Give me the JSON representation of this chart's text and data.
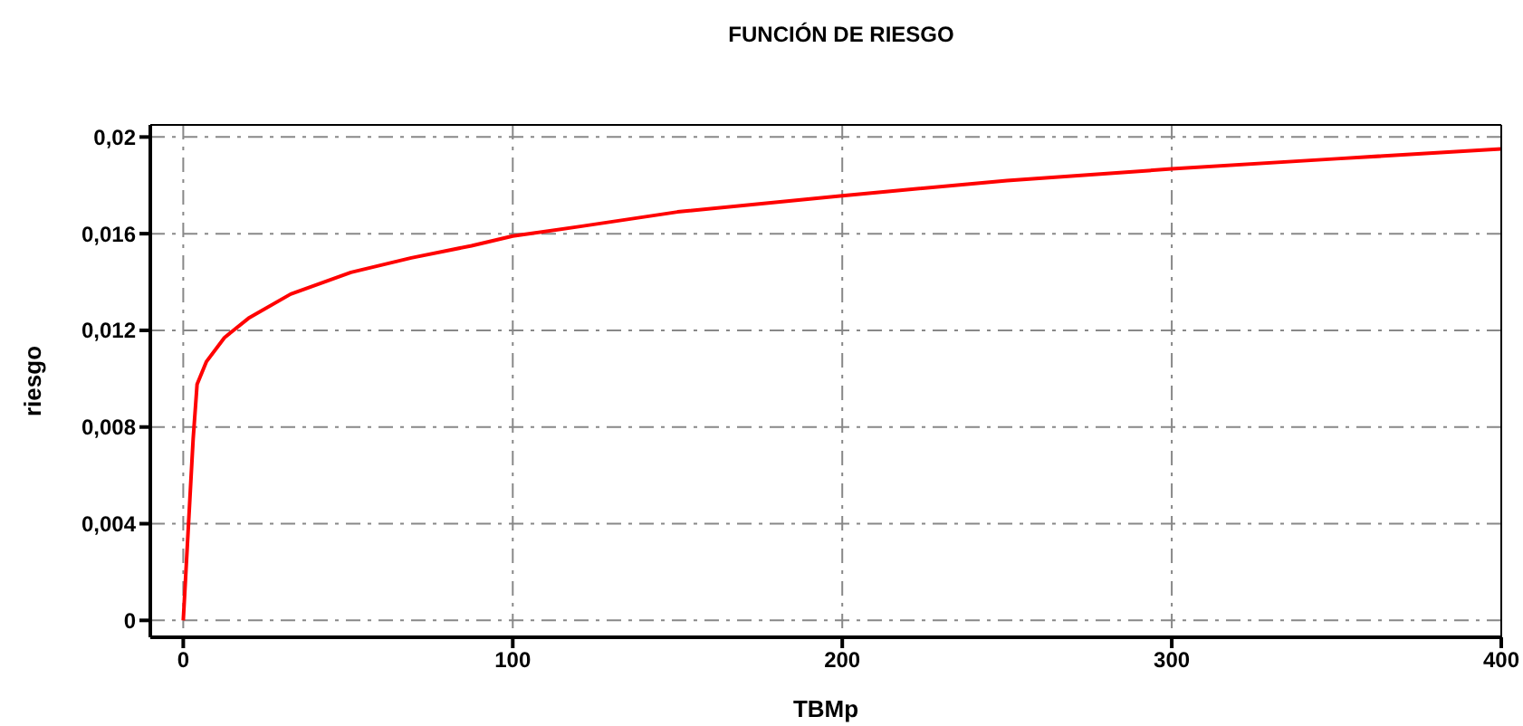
{
  "chart_data": {
    "type": "line",
    "title": "FUNCIÓN DE RIESGO",
    "xlabel": "TBMp",
    "ylabel": "riesgo",
    "x": [
      0,
      1,
      2,
      3,
      4.2,
      7,
      12.5,
      19.8,
      32.6,
      50.9,
      69.2,
      87.5,
      100,
      120.5,
      150,
      200,
      250,
      300,
      350,
      400
    ],
    "series": [
      {
        "color": "#ff0000",
        "values": [
          0,
          0.0025,
          0.005,
          0.0075,
          0.00977,
          0.0107,
          0.0117,
          0.0125,
          0.0135,
          0.0144,
          0.015,
          0.0155,
          0.0159,
          0.0163,
          0.0169,
          0.01757,
          0.0182,
          0.01868,
          0.0191,
          0.01951
        ]
      }
    ],
    "xlim": [
      -10,
      400
    ],
    "xticks": [
      0,
      100,
      200,
      300,
      400
    ],
    "ylim": [
      -0.0007,
      0.0205
    ],
    "yticks": [
      0,
      {
        "value": 0.004,
        "label": "0,004"
      },
      {
        "value": 0.008,
        "label": "0,008"
      },
      {
        "value": 0.012,
        "label": "0,012"
      },
      {
        "value": 0.016,
        "label": "0,016"
      },
      {
        "value": 0.02,
        "label": "0,02"
      }
    ],
    "grid": true,
    "legend": false,
    "marker": "none",
    "line_style": "solid"
  }
}
